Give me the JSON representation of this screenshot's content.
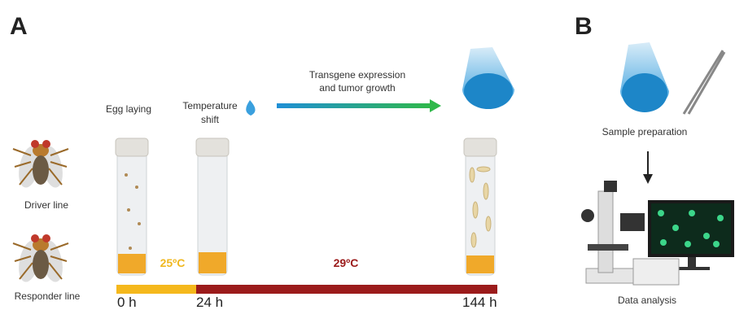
{
  "panel_a": {
    "label": "A",
    "driver": "Driver line",
    "responder": "Responder line",
    "steps": [
      {
        "lines": [
          "Egg laying"
        ]
      },
      {
        "lines": [
          "Temperature",
          "shift"
        ]
      },
      {
        "lines": [
          "Transgene expression",
          "and tumor growth"
        ]
      }
    ],
    "temperatures": [
      "25ºC",
      "29ºC"
    ],
    "timepoints": [
      "0 h",
      "24 h",
      "144 h"
    ]
  },
  "panel_b": {
    "label": "B",
    "steps": [
      "Sample preparation",
      "Data analysis"
    ]
  }
}
